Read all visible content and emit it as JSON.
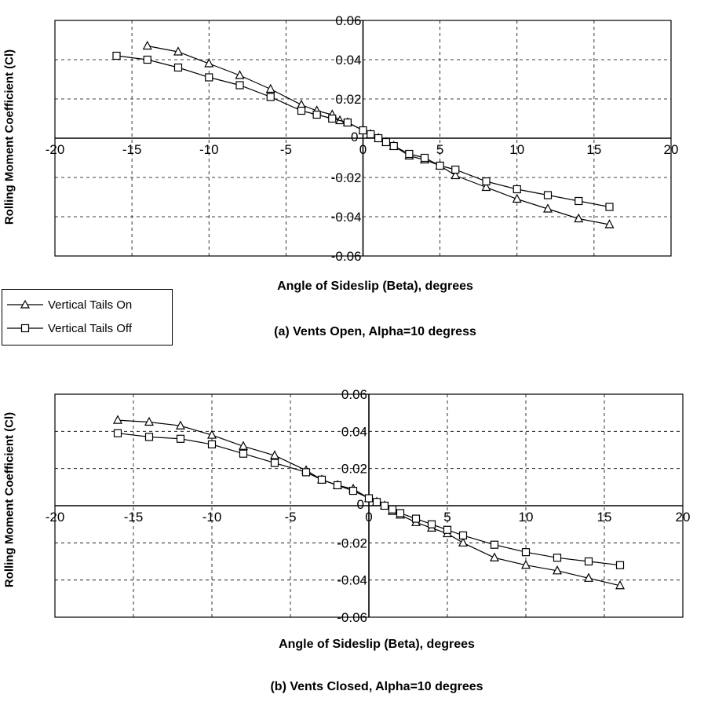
{
  "legend": {
    "entries": [
      {
        "label": "Vertical Tails On",
        "marker": "triangle"
      },
      {
        "label": "Vertical Tails Off",
        "marker": "square"
      }
    ]
  },
  "chart_data": [
    {
      "type": "line",
      "caption": "(a) Vents Open, Alpha=10 degress",
      "xlabel": "Angle of Sideslip (Beta), degrees",
      "ylabel": "Rolling Moment Coefficient (Cl)",
      "xlim": [
        -20,
        20
      ],
      "ylim": [
        -0.06,
        0.06
      ],
      "xticks": [
        "-20",
        "-15",
        "-10",
        "-5",
        "0",
        "5",
        "10",
        "15",
        "20"
      ],
      "yticks": [
        "0.06",
        "0.04",
        "0.02",
        "0",
        "-0.02",
        "-0.04",
        "-0.06"
      ],
      "grid": true,
      "series": [
        {
          "name": "Vertical Tails On",
          "marker": "triangle",
          "x": [
            -14,
            -12,
            -10,
            -8,
            -6,
            -4,
            -3,
            -2,
            -1.5,
            -1,
            0,
            0.5,
            1,
            1.5,
            2,
            3,
            4,
            5,
            6,
            8,
            10,
            12,
            14,
            16
          ],
          "y": [
            0.047,
            0.044,
            0.038,
            0.032,
            0.025,
            0.017,
            0.014,
            0.012,
            0.009,
            0.008,
            0.004,
            0.002,
            0.0,
            -0.002,
            -0.004,
            -0.009,
            -0.011,
            -0.014,
            -0.019,
            -0.025,
            -0.031,
            -0.036,
            -0.041,
            -0.044
          ]
        },
        {
          "name": "Vertical Tails Off",
          "marker": "square",
          "x": [
            -16,
            -14,
            -12,
            -10,
            -8,
            -6,
            -4,
            -3,
            -2,
            -1,
            0,
            0.5,
            1,
            1.5,
            2,
            3,
            4,
            5,
            6,
            8,
            10,
            12,
            14,
            16
          ],
          "y": [
            0.042,
            0.04,
            0.036,
            0.031,
            0.027,
            0.021,
            0.014,
            0.012,
            0.01,
            0.008,
            0.004,
            0.002,
            0.0,
            -0.002,
            -0.004,
            -0.008,
            -0.01,
            -0.014,
            -0.016,
            -0.022,
            -0.026,
            -0.029,
            -0.032,
            -0.035
          ]
        }
      ]
    },
    {
      "type": "line",
      "caption": "(b) Vents Closed, Alpha=10 degrees",
      "xlabel": "Angle of Sideslip (Beta), degrees",
      "ylabel": "Rolling Moment Coefficient (Cl)",
      "xlim": [
        -20,
        20
      ],
      "ylim": [
        -0.06,
        0.06
      ],
      "xticks": [
        "-20",
        "-15",
        "-10",
        "-5",
        "0",
        "5",
        "10",
        "15",
        "20"
      ],
      "yticks": [
        "0.06",
        "0.04",
        "0.02",
        "0",
        "-0.02",
        "-0.04",
        "-0.06"
      ],
      "grid": true,
      "series": [
        {
          "name": "Vertical Tails On",
          "marker": "triangle",
          "x": [
            -16,
            -14,
            -12,
            -10,
            -8,
            -6,
            -4,
            -3,
            -2,
            -1,
            0,
            0.5,
            1,
            1.5,
            2,
            3,
            4,
            5,
            6,
            8,
            10,
            12,
            14,
            16
          ],
          "y": [
            0.046,
            0.045,
            0.043,
            0.038,
            0.032,
            0.027,
            0.019,
            0.014,
            0.011,
            0.009,
            0.004,
            0.002,
            0.0,
            -0.003,
            -0.005,
            -0.009,
            -0.012,
            -0.015,
            -0.02,
            -0.028,
            -0.032,
            -0.035,
            -0.039,
            -0.043
          ]
        },
        {
          "name": "Vertical Tails Off",
          "marker": "square",
          "x": [
            -16,
            -14,
            -12,
            -10,
            -8,
            -6,
            -4,
            -3,
            -2,
            -1,
            0,
            0.5,
            1,
            1.5,
            2,
            3,
            4,
            5,
            6,
            8,
            10,
            12,
            14,
            16
          ],
          "y": [
            0.039,
            0.037,
            0.036,
            0.033,
            0.028,
            0.023,
            0.018,
            0.014,
            0.011,
            0.008,
            0.004,
            0.002,
            0.0,
            -0.002,
            -0.004,
            -0.007,
            -0.01,
            -0.013,
            -0.016,
            -0.021,
            -0.025,
            -0.028,
            -0.03,
            -0.032
          ]
        }
      ]
    }
  ]
}
